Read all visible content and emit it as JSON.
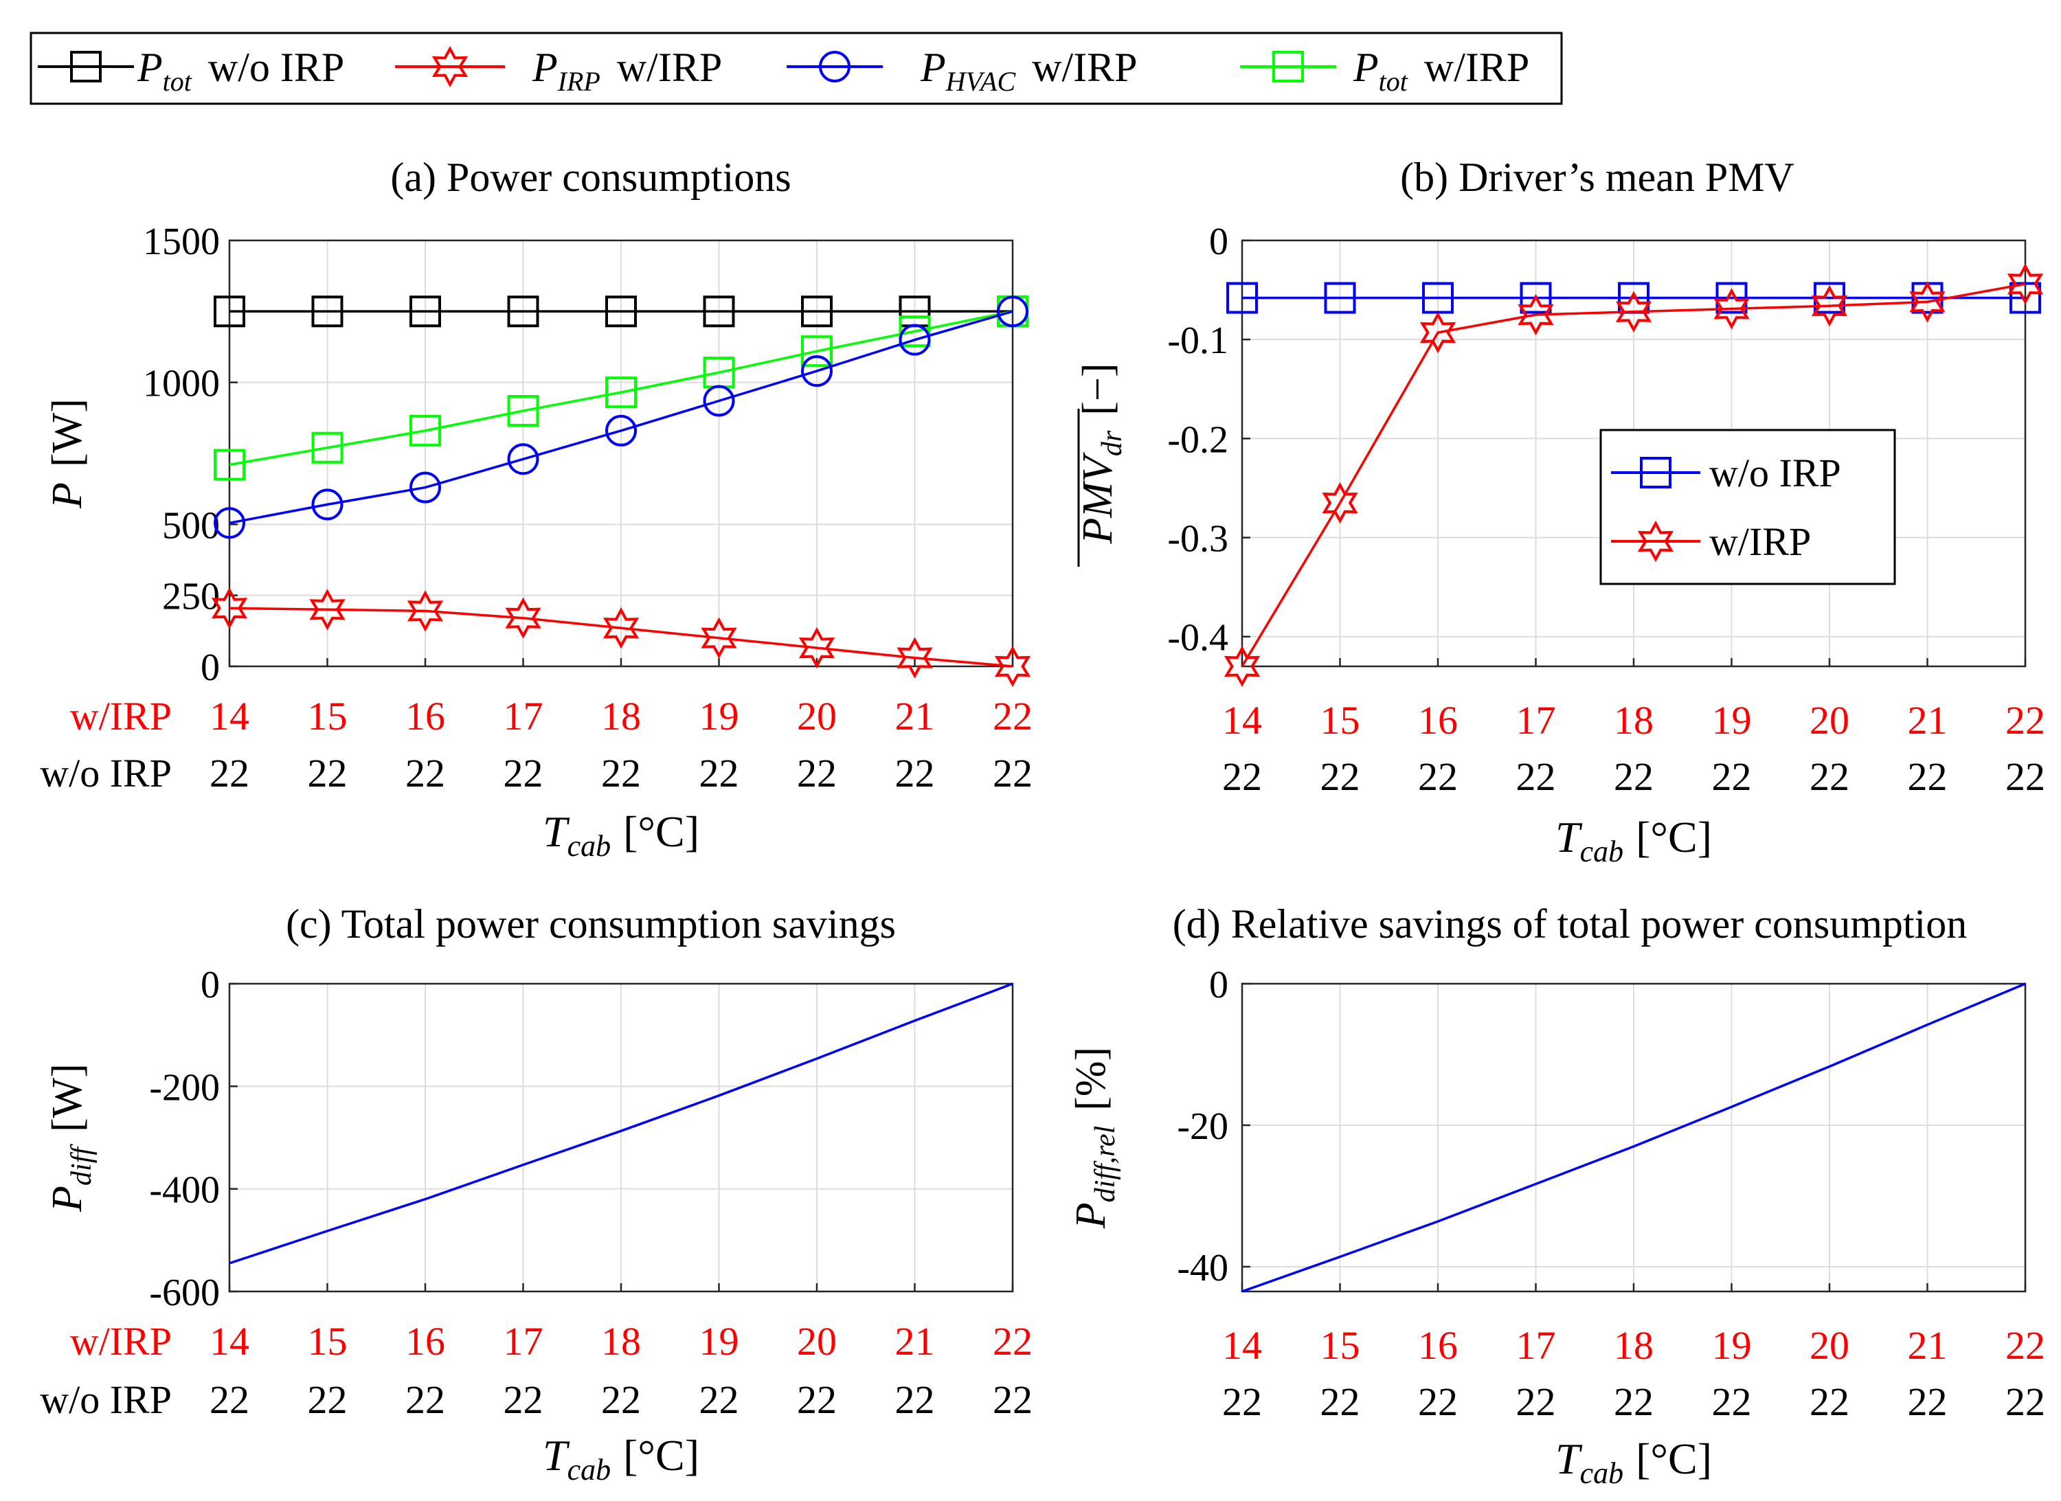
{
  "legend_top": [
    {
      "label_main": "P",
      "label_sub": "tot",
      "label_rest": "w/o IRP",
      "color": "#000000",
      "marker": "square"
    },
    {
      "label_main": "P",
      "label_sub": "IRP",
      "label_rest": "w/IRP",
      "color": "#ff0000",
      "marker": "hexagram"
    },
    {
      "label_main": "P",
      "label_sub": "HVAC",
      "label_rest": "w/IRP",
      "color": "#0000ff",
      "marker": "circle"
    },
    {
      "label_main": "P",
      "label_sub": "tot",
      "label_rest": "w/IRP",
      "color": "#00ff00",
      "marker": "square"
    }
  ],
  "x_rows": {
    "row1_label": "w/IRP",
    "row2_label": "w/o IRP",
    "row1": [
      "14",
      "15",
      "16",
      "17",
      "18",
      "19",
      "20",
      "21",
      "22"
    ],
    "row2": [
      "22",
      "22",
      "22",
      "22",
      "22",
      "22",
      "22",
      "22",
      "22"
    ],
    "xlabel_main": "T",
    "xlabel_sub": "cab",
    "xlabel_unit": "[°C]"
  },
  "chart_data": [
    {
      "type": "line",
      "title": "(a) Power consumptions",
      "ylabel_main": "P",
      "ylabel_unit": "[W]",
      "ylim": [
        0,
        1500
      ],
      "yticks": [
        0,
        250,
        500,
        1000,
        1500
      ],
      "x": [
        14,
        15,
        16,
        17,
        18,
        19,
        20,
        21,
        22
      ],
      "series": [
        {
          "name": "P_tot w/o IRP",
          "color": "#000000",
          "marker": "square",
          "values": [
            1250,
            1250,
            1250,
            1250,
            1250,
            1250,
            1250,
            1250,
            1250
          ]
        },
        {
          "name": "P_tot w/IRP",
          "color": "#00ff00",
          "marker": "square",
          "values": [
            710,
            770,
            830,
            900,
            965,
            1035,
            1110,
            1180,
            1250
          ]
        },
        {
          "name": "P_HVAC w/IRP",
          "color": "#0000ff",
          "marker": "circle",
          "values": [
            505,
            570,
            630,
            730,
            830,
            935,
            1040,
            1150,
            1250
          ]
        },
        {
          "name": "P_IRP w/IRP",
          "color": "#ff0000",
          "marker": "hexagram",
          "values": [
            205,
            200,
            195,
            170,
            135,
            100,
            65,
            30,
            0
          ]
        }
      ]
    },
    {
      "type": "line",
      "title": "(b) Driver’s mean PMV",
      "ylabel_main": "PMV",
      "ylabel_sub": "dr",
      "ylabel_unit": "[−]",
      "ylim": [
        -0.43,
        0
      ],
      "yticks": [
        0,
        -0.1,
        -0.2,
        -0.3,
        -0.4
      ],
      "ytick_labels": [
        "0",
        "-0.1",
        "-0.2",
        "-0.3",
        "-0.4"
      ],
      "x": [
        14,
        15,
        16,
        17,
        18,
        19,
        20,
        21,
        22
      ],
      "legend": [
        {
          "label": "w/o IRP",
          "color": "#0000ff",
          "marker": "square"
        },
        {
          "label": "w/IRP",
          "color": "#ff0000",
          "marker": "hexagram"
        }
      ],
      "series": [
        {
          "name": "w/o IRP",
          "color": "#0000ff",
          "marker": "square",
          "values": [
            -0.058,
            -0.058,
            -0.058,
            -0.058,
            -0.058,
            -0.058,
            -0.058,
            -0.058,
            -0.058
          ]
        },
        {
          "name": "w/IRP",
          "color": "#ff0000",
          "marker": "hexagram",
          "values": [
            -0.43,
            -0.265,
            -0.093,
            -0.075,
            -0.072,
            -0.069,
            -0.066,
            -0.062,
            -0.044
          ]
        }
      ]
    },
    {
      "type": "line",
      "title": "(c) Total power consumption savings",
      "ylabel_main": "P",
      "ylabel_sub": "diff",
      "ylabel_unit": "[W]",
      "ylim": [
        -600,
        0
      ],
      "yticks": [
        0,
        -200,
        -400,
        -600
      ],
      "ytick_labels": [
        "0",
        "-200",
        "-400",
        "-600"
      ],
      "x": [
        14,
        15,
        16,
        17,
        18,
        19,
        20,
        21,
        22
      ],
      "series": [
        {
          "name": "P_diff",
          "color": "#0000ff",
          "marker": "none",
          "values": [
            -545,
            -482,
            -420,
            -353,
            -287,
            -218,
            -146,
            -72,
            0
          ]
        }
      ]
    },
    {
      "type": "line",
      "title": "(d) Relative savings of total power consumption",
      "ylabel_main": "P",
      "ylabel_sub": "diff,rel",
      "ylabel_unit": "[%]",
      "ylim": [
        -43.5,
        0
      ],
      "yticks": [
        0,
        -20,
        -40
      ],
      "ytick_labels": [
        "0",
        "-20",
        "-40"
      ],
      "x": [
        14,
        15,
        16,
        17,
        18,
        19,
        20,
        21,
        22
      ],
      "series": [
        {
          "name": "P_diff,rel",
          "color": "#0000ff",
          "marker": "none",
          "values": [
            -43.5,
            -38.6,
            -33.6,
            -28.3,
            -23.0,
            -17.4,
            -11.7,
            -5.8,
            0
          ]
        }
      ]
    }
  ]
}
